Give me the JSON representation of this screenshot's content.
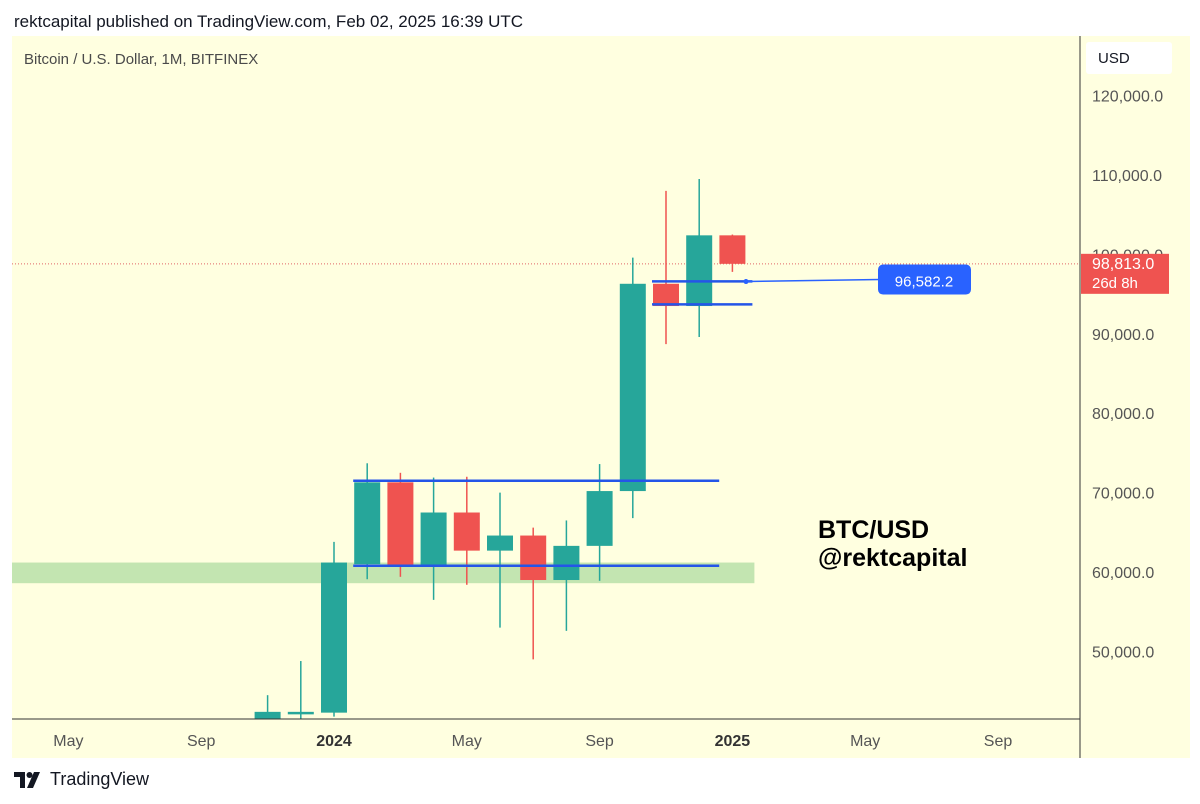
{
  "header": {
    "published_line": "rektcapital published on TradingView.com, Feb 02, 2025 16:39 UTC"
  },
  "symbol_title": "Bitcoin / U.S. Dollar, 1M, BITFINEX",
  "currency": "USD",
  "watermark": {
    "line1": "BTC/USD",
    "line2": "@rektcapital"
  },
  "footer": {
    "brand": "TradingView",
    "logo_icon": "tradingview-logo-icon"
  },
  "colors": {
    "up": "#26a69a",
    "down": "#ef5350",
    "background": "#ffffe0",
    "levels": "#2455e8",
    "zone": "#b8e0a8",
    "price_line": "#e06666",
    "label_blue": "#2962ff"
  },
  "chart_data": {
    "type": "candlestick",
    "interval": "1M",
    "ylim": [
      41500,
      127500
    ],
    "y_ticks": [
      50000,
      60000,
      70000,
      80000,
      90000,
      100000,
      110000,
      120000
    ],
    "y_tick_labels": [
      "50,000.0",
      "60,000.0",
      "70,000.0",
      "80,000.0",
      "90,000.0",
      "100,000.0",
      "110,000.0",
      "120,000.0"
    ],
    "x_ticks": [
      {
        "label": "May",
        "date": "2023-05",
        "bold": false
      },
      {
        "label": "Sep",
        "date": "2023-09",
        "bold": false
      },
      {
        "label": "2024",
        "date": "2024-01",
        "bold": true
      },
      {
        "label": "May",
        "date": "2024-05",
        "bold": false
      },
      {
        "label": "Sep",
        "date": "2024-09",
        "bold": false
      },
      {
        "label": "2025",
        "date": "2025-01",
        "bold": true
      },
      {
        "label": "May",
        "date": "2025-05",
        "bold": false
      },
      {
        "label": "Sep",
        "date": "2025-09",
        "bold": false
      }
    ],
    "candles": [
      {
        "date": "2023-11",
        "open": 41500,
        "high": 44500,
        "low": 41500,
        "close": 42400
      },
      {
        "date": "2023-12",
        "open": 42200,
        "high": 48800,
        "low": 41500,
        "close": 42400
      },
      {
        "date": "2024-01",
        "open": 42300,
        "high": 63800,
        "low": 41800,
        "close": 61200
      },
      {
        "date": "2024-02",
        "open": 61000,
        "high": 73700,
        "low": 59100,
        "close": 71300
      },
      {
        "date": "2024-03",
        "open": 71300,
        "high": 72500,
        "low": 59400,
        "close": 60700
      },
      {
        "date": "2024-04",
        "open": 60700,
        "high": 71900,
        "low": 56500,
        "close": 67500
      },
      {
        "date": "2024-05",
        "open": 67500,
        "high": 72000,
        "low": 58400,
        "close": 62700
      },
      {
        "date": "2024-06",
        "open": 62700,
        "high": 70000,
        "low": 53000,
        "close": 64600
      },
      {
        "date": "2024-07",
        "open": 64600,
        "high": 65600,
        "low": 49000,
        "close": 59000
      },
      {
        "date": "2024-08",
        "open": 59000,
        "high": 66500,
        "low": 52600,
        "close": 63300
      },
      {
        "date": "2024-09",
        "open": 63300,
        "high": 73600,
        "low": 58900,
        "close": 70200
      },
      {
        "date": "2024-10",
        "open": 70200,
        "high": 99600,
        "low": 66800,
        "close": 96300
      },
      {
        "date": "2024-11",
        "open": 96300,
        "high": 108000,
        "low": 88700,
        "close": 93500
      },
      {
        "date": "2024-12",
        "open": 93500,
        "high": 109500,
        "low": 89600,
        "close": 102400
      },
      {
        "date": "2025-01",
        "open": 102400,
        "high": 102500,
        "low": 97800,
        "close": 98813
      }
    ],
    "levels": [
      {
        "price": 71500,
        "from": "2024-02",
        "to": "2024-12"
      },
      {
        "price": 60800,
        "from": "2024-02",
        "to": "2024-12"
      },
      {
        "price": 96600,
        "from": "2024-11",
        "to": "2025-01"
      },
      {
        "price": 93700,
        "from": "2024-11",
        "to": "2025-01"
      }
    ],
    "zone": {
      "from_price": 58600,
      "to_price": 61200,
      "to": "2025-01"
    },
    "price_marker": {
      "value": 96582.2,
      "label": "96,582.2"
    },
    "last_price": {
      "value": 98813,
      "label": "98,813.0",
      "countdown": "26d 8h"
    }
  }
}
